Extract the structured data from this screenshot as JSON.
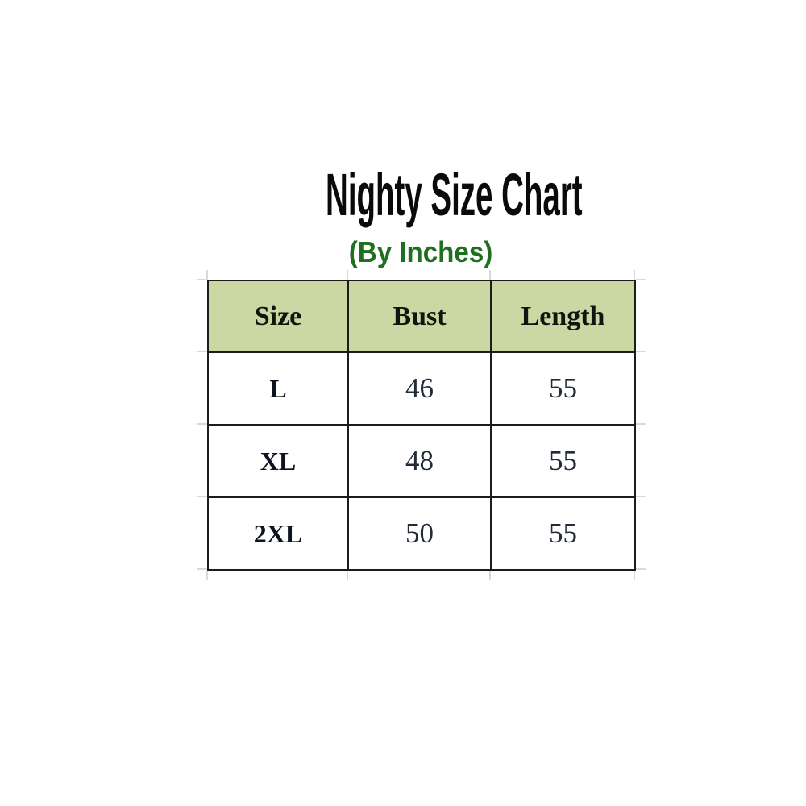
{
  "title": "Nighty Size Chart",
  "subtitle": "(By Inches)",
  "colors": {
    "header_bg": "#cbd8a3",
    "subtitle_green": "#1e6f1f",
    "border": "#1c1c1c",
    "title_black": "#0a0a0a"
  },
  "chart_data": {
    "type": "table",
    "title": "Nighty Size Chart",
    "subtitle": "(By Inches)",
    "unit": "Inches",
    "columns": [
      "Size",
      "Bust",
      "Length"
    ],
    "rows": [
      [
        "L",
        "46",
        "55"
      ],
      [
        "XL",
        "48",
        "55"
      ],
      [
        "2XL",
        "50",
        "55"
      ]
    ]
  }
}
